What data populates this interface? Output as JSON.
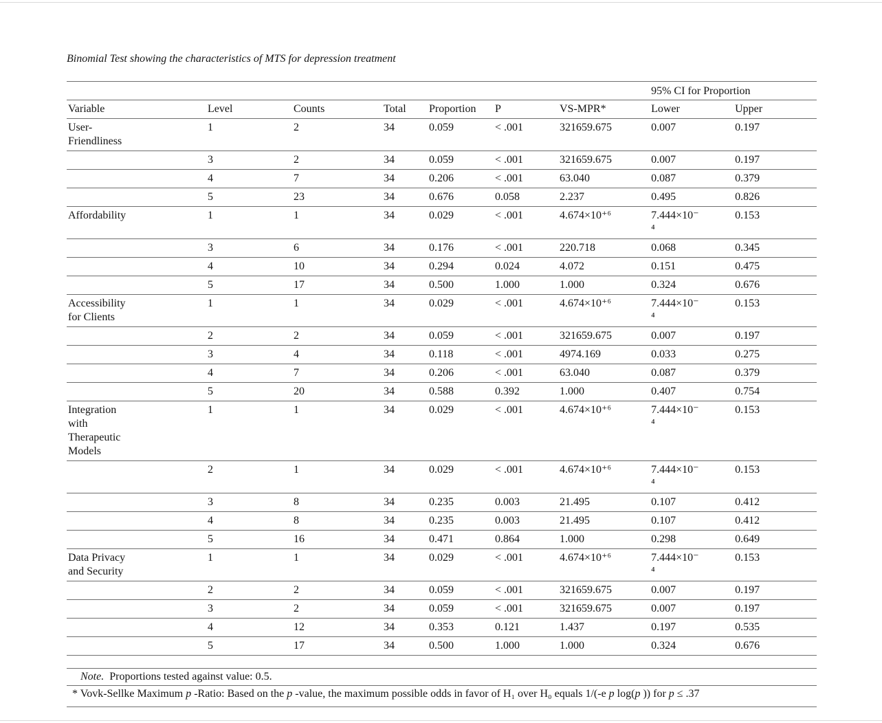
{
  "document": {
    "title": "Binomial Test showing the characteristics of MTS for depression treatment"
  },
  "table": {
    "ci_spanner": "95% CI for Proportion",
    "columns": [
      "Variable",
      "Level",
      "Counts",
      "Total",
      "Proportion",
      "P",
      "VS-MPR*",
      "Lower",
      "Upper"
    ],
    "rows": [
      {
        "variable": "User-\nFriendliness",
        "level": "1",
        "counts": "2",
        "total": "34",
        "proportion": "0.059",
        "p": "< .001",
        "vsmpr": "321659.675",
        "lower": "0.007",
        "upper": "0.197"
      },
      {
        "variable": "",
        "level": "3",
        "counts": "2",
        "total": "34",
        "proportion": "0.059",
        "p": "< .001",
        "vsmpr": "321659.675",
        "lower": "0.007",
        "upper": "0.197"
      },
      {
        "variable": "",
        "level": "4",
        "counts": "7",
        "total": "34",
        "proportion": "0.206",
        "p": "< .001",
        "vsmpr": "63.040",
        "lower": "0.087",
        "upper": "0.379"
      },
      {
        "variable": "",
        "level": "5",
        "counts": "23",
        "total": "34",
        "proportion": "0.676",
        "p": "0.058",
        "vsmpr": "2.237",
        "lower": "0.495",
        "upper": "0.826"
      },
      {
        "variable": "Affordability",
        "level": "1",
        "counts": "1",
        "total": "34",
        "proportion": "0.029",
        "p": "< .001",
        "vsmpr": "4.674×10⁺⁶",
        "lower": "7.444×10⁻\n⁴",
        "upper": "0.153"
      },
      {
        "variable": "",
        "level": "3",
        "counts": "6",
        "total": "34",
        "proportion": "0.176",
        "p": "< .001",
        "vsmpr": "220.718",
        "lower": "0.068",
        "upper": "0.345"
      },
      {
        "variable": "",
        "level": "4",
        "counts": "10",
        "total": "34",
        "proportion": "0.294",
        "p": "0.024",
        "vsmpr": "4.072",
        "lower": "0.151",
        "upper": "0.475"
      },
      {
        "variable": "",
        "level": "5",
        "counts": "17",
        "total": "34",
        "proportion": "0.500",
        "p": "1.000",
        "vsmpr": "1.000",
        "lower": "0.324",
        "upper": "0.676"
      },
      {
        "variable": "Accessibility\nfor Clients",
        "level": "1",
        "counts": "1",
        "total": "34",
        "proportion": "0.029",
        "p": "< .001",
        "vsmpr": "4.674×10⁺⁶",
        "lower": "7.444×10⁻\n⁴",
        "upper": "0.153"
      },
      {
        "variable": "",
        "level": "2",
        "counts": "2",
        "total": "34",
        "proportion": "0.059",
        "p": "< .001",
        "vsmpr": "321659.675",
        "lower": "0.007",
        "upper": "0.197"
      },
      {
        "variable": "",
        "level": "3",
        "counts": "4",
        "total": "34",
        "proportion": "0.118",
        "p": "< .001",
        "vsmpr": "4974.169",
        "lower": "0.033",
        "upper": "0.275"
      },
      {
        "variable": "",
        "level": "4",
        "counts": "7",
        "total": "34",
        "proportion": "0.206",
        "p": "< .001",
        "vsmpr": "63.040",
        "lower": "0.087",
        "upper": "0.379"
      },
      {
        "variable": "",
        "level": "5",
        "counts": "20",
        "total": "34",
        "proportion": "0.588",
        "p": "0.392",
        "vsmpr": "1.000",
        "lower": "0.407",
        "upper": "0.754"
      },
      {
        "variable": "Integration\nwith\nTherapeutic\nModels",
        "level": "1",
        "counts": "1",
        "total": "34",
        "proportion": "0.029",
        "p": "< .001",
        "vsmpr": "4.674×10⁺⁶",
        "lower": "7.444×10⁻\n⁴",
        "upper": "0.153"
      },
      {
        "variable": "",
        "level": "2",
        "counts": "1",
        "total": "34",
        "proportion": "0.029",
        "p": "< .001",
        "vsmpr": "4.674×10⁺⁶",
        "lower": "7.444×10⁻\n⁴",
        "upper": "0.153"
      },
      {
        "variable": "",
        "level": "3",
        "counts": "8",
        "total": "34",
        "proportion": "0.235",
        "p": "0.003",
        "vsmpr": "21.495",
        "lower": "0.107",
        "upper": "0.412"
      },
      {
        "variable": "",
        "level": "4",
        "counts": "8",
        "total": "34",
        "proportion": "0.235",
        "p": "0.003",
        "vsmpr": "21.495",
        "lower": "0.107",
        "upper": "0.412"
      },
      {
        "variable": "",
        "level": "5",
        "counts": "16",
        "total": "34",
        "proportion": "0.471",
        "p": "0.864",
        "vsmpr": "1.000",
        "lower": "0.298",
        "upper": "0.649"
      },
      {
        "variable": "Data Privacy\nand Security",
        "level": "1",
        "counts": "1",
        "total": "34",
        "proportion": "0.029",
        "p": "< .001",
        "vsmpr": "4.674×10⁺⁶",
        "lower": "7.444×10⁻\n⁴",
        "upper": "0.153"
      },
      {
        "variable": "",
        "level": "2",
        "counts": "2",
        "total": "34",
        "proportion": "0.059",
        "p": "< .001",
        "vsmpr": "321659.675",
        "lower": "0.007",
        "upper": "0.197"
      },
      {
        "variable": "",
        "level": "3",
        "counts": "2",
        "total": "34",
        "proportion": "0.059",
        "p": "< .001",
        "vsmpr": "321659.675",
        "lower": "0.007",
        "upper": "0.197"
      },
      {
        "variable": "",
        "level": "4",
        "counts": "12",
        "total": "34",
        "proportion": "0.353",
        "p": "0.121",
        "vsmpr": "1.437",
        "lower": "0.197",
        "upper": "0.535"
      },
      {
        "variable": "",
        "level": "5",
        "counts": "17",
        "total": "34",
        "proportion": "0.500",
        "p": "1.000",
        "vsmpr": "1.000",
        "lower": "0.324",
        "upper": "0.676"
      }
    ],
    "note": {
      "segments": [
        {
          "t": "Note.",
          "i": true
        },
        {
          "t": "  Proportions tested against value: 0.5."
        }
      ]
    },
    "footnote": {
      "segments": [
        {
          "t": "* Vovk-Sellke Maximum "
        },
        {
          "t": "p",
          "i": true
        },
        {
          "t": " -Ratio: Based on the "
        },
        {
          "t": "p",
          "i": true
        },
        {
          "t": " -value, the maximum possible odds in favor of H₁ over H₀ equals 1/(-e "
        },
        {
          "t": "p",
          "i": true
        },
        {
          "t": " log("
        },
        {
          "t": "p",
          "i": true
        },
        {
          "t": " )) for "
        },
        {
          "t": "p",
          "i": true
        },
        {
          "t": " ≤ .37"
        }
      ]
    }
  }
}
